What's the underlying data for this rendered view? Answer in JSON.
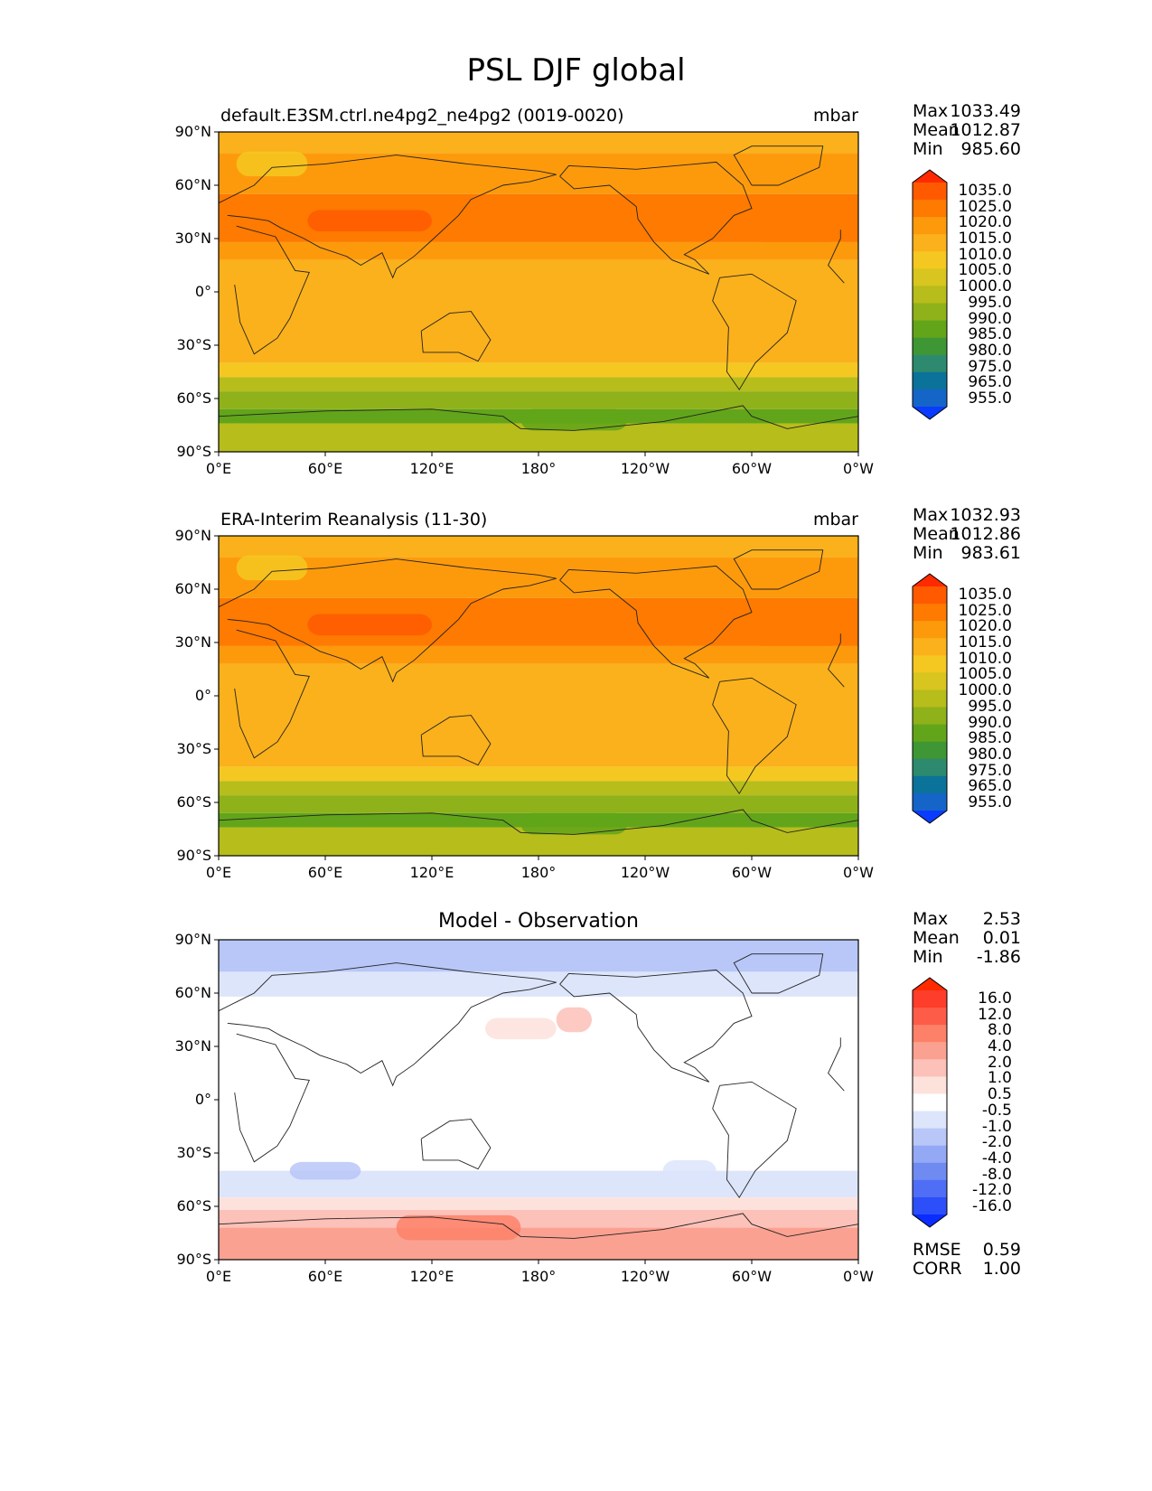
{
  "figure_title": "PSL DJF global",
  "chart_data": [
    {
      "type": "heatmap",
      "id": "test",
      "title": "default.E3SM.ctrl.ne4pg2_ne4pg2 (0019-0020)",
      "units": "mbar",
      "stats": {
        "max": "1033.49",
        "mean": "1012.87",
        "min": "985.60"
      },
      "x_ticks": [
        "0°E",
        "60°E",
        "120°E",
        "180°",
        "120°W",
        "60°W",
        "0°W"
      ],
      "y_ticks": [
        "90°N",
        "60°N",
        "30°N",
        "0°",
        "30°S",
        "60°S",
        "90°S"
      ],
      "xlim": [
        0,
        360
      ],
      "ylim": [
        -90,
        90
      ],
      "colorbar_levels": [
        "1035.0",
        "1025.0",
        "1020.0",
        "1015.0",
        "1010.0",
        "1005.0",
        "1000.0",
        "995.0",
        "990.0",
        "985.0",
        "980.0",
        "975.0",
        "965.0",
        "955.0"
      ],
      "colorbar_colors": [
        "#ff2a00",
        "#ff5a00",
        "#fe7a00",
        "#fd9a0c",
        "#fbb11b",
        "#f4c820",
        "#d8c51f",
        "#b7bd1a",
        "#8fb11a",
        "#62a51a",
        "#3f9634",
        "#2e8a6e",
        "#0b7399",
        "#1565c8",
        "#0a3cff"
      ],
      "extend": "both"
    },
    {
      "type": "heatmap",
      "id": "reference",
      "title": "ERA-Interim Reanalysis (11-30)",
      "units": "mbar",
      "stats": {
        "max": "1032.93",
        "mean": "1012.86",
        "min": "983.61"
      },
      "x_ticks": [
        "0°E",
        "60°E",
        "120°E",
        "180°",
        "120°W",
        "60°W",
        "0°W"
      ],
      "y_ticks": [
        "90°N",
        "60°N",
        "30°N",
        "0°",
        "30°S",
        "60°S",
        "90°S"
      ],
      "xlim": [
        0,
        360
      ],
      "ylim": [
        -90,
        90
      ],
      "colorbar_levels": [
        "1035.0",
        "1025.0",
        "1020.0",
        "1015.0",
        "1010.0",
        "1005.0",
        "1000.0",
        "995.0",
        "990.0",
        "985.0",
        "980.0",
        "975.0",
        "965.0",
        "955.0"
      ],
      "colorbar_colors": [
        "#ff2a00",
        "#ff5a00",
        "#fe7a00",
        "#fd9a0c",
        "#fbb11b",
        "#f4c820",
        "#d8c51f",
        "#b7bd1a",
        "#8fb11a",
        "#62a51a",
        "#3f9634",
        "#2e8a6e",
        "#0b7399",
        "#1565c8",
        "#0a3cff"
      ],
      "extend": "both"
    },
    {
      "type": "heatmap",
      "id": "difference",
      "title": "Model - Observation",
      "units": "",
      "stats": {
        "max": "2.53",
        "mean": "0.01",
        "min": "-1.86"
      },
      "metrics": {
        "rmse": "0.59",
        "corr": "1.00"
      },
      "x_ticks": [
        "0°E",
        "60°E",
        "120°E",
        "180°",
        "120°W",
        "60°W",
        "0°W"
      ],
      "y_ticks": [
        "90°N",
        "60°N",
        "30°N",
        "0°",
        "30°S",
        "60°S",
        "90°S"
      ],
      "xlim": [
        0,
        360
      ],
      "ylim": [
        -90,
        90
      ],
      "colorbar_levels": [
        "16.0",
        "12.0",
        "8.0",
        "4.0",
        "2.0",
        "1.0",
        "0.5",
        "-0.5",
        "-1.0",
        "-2.0",
        "-4.0",
        "-8.0",
        "-12.0",
        "-16.0"
      ],
      "colorbar_colors": [
        "#ff2a00",
        "#fe3d2b",
        "#fd5c49",
        "#fd8168",
        "#fba191",
        "#fcc1b8",
        "#fde2dc",
        "#ffffff",
        "#dde5fb",
        "#b8c7f7",
        "#94a9f5",
        "#6f8bf2",
        "#4f6ef5",
        "#2c4ffa",
        "#0a2cff"
      ],
      "extend": "both"
    }
  ],
  "labels": {
    "max": "Max",
    "mean": "Mean",
    "min": "Min",
    "rmse": "RMSE",
    "corr": "CORR"
  }
}
